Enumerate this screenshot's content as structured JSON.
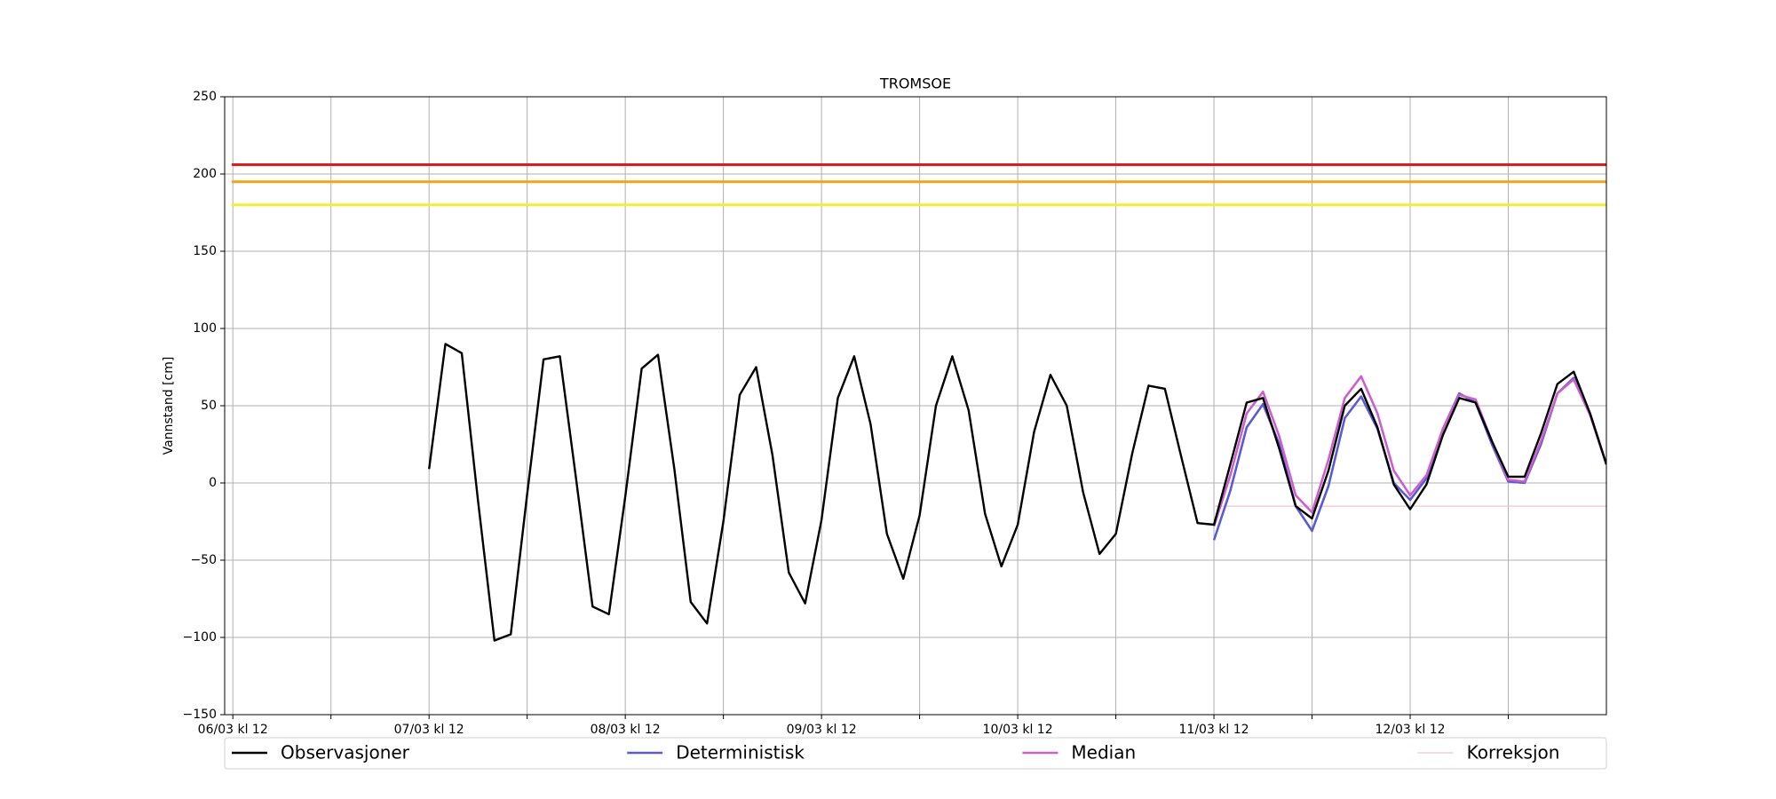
{
  "chart_data": {
    "type": "line",
    "title": "TROMSOE",
    "ylabel": "Vannstand [cm]",
    "xlim": [
      "06/03 kl 11",
      "13/03 kl 12"
    ],
    "ylim": [
      -150,
      250
    ],
    "yticks": [
      {
        "value": -150,
        "label": "−150"
      },
      {
        "value": -100,
        "label": "−100"
      },
      {
        "value": -50,
        "label": "−50"
      },
      0,
      50,
      100,
      150,
      200,
      250
    ],
    "xticks": [
      "06/03 kl 12",
      "07/03 kl 12",
      "08/03 kl 12",
      "09/03 kl 12",
      "10/03 kl 12",
      "11/03 kl 12",
      "12/03 kl 12"
    ],
    "xticks_minor": [
      "07/03 kl 00",
      "08/03 kl 00",
      "09/03 kl 00",
      "10/03 kl 00",
      "11/03 kl 00",
      "12/03 kl 00",
      "13/03 kl 00"
    ],
    "grid": true,
    "legend": "below",
    "hlines": [
      {
        "value": 206,
        "color": "#e8181a"
      },
      {
        "value": 195,
        "color": "#f5a30f"
      },
      {
        "value": 180,
        "color": "#f5ee2a"
      }
    ],
    "series": [
      {
        "name": "Observasjoner",
        "color": "#000000",
        "width": 2.4,
        "x": [
          "07/03 kl 12",
          "07/03 kl 14",
          "07/03 kl 16",
          "07/03 kl 18",
          "07/03 kl 20",
          "07/03 kl 22",
          "08/03 kl 00",
          "08/03 kl 02",
          "08/03 kl 04",
          "08/03 kl 06",
          "08/03 kl 08",
          "08/03 kl 10",
          "08/03 kl 12",
          "08/03 kl 14",
          "08/03 kl 16",
          "08/03 kl 18",
          "08/03 kl 20",
          "08/03 kl 22",
          "09/03 kl 00",
          "09/03 kl 02",
          "09/03 kl 04",
          "09/03 kl 06",
          "09/03 kl 08",
          "09/03 kl 10",
          "09/03 kl 12",
          "09/03 kl 14",
          "09/03 kl 16",
          "09/03 kl 18",
          "09/03 kl 20",
          "09/03 kl 22",
          "10/03 kl 00",
          "10/03 kl 02",
          "10/03 kl 04",
          "10/03 kl 06",
          "10/03 kl 08",
          "10/03 kl 10",
          "10/03 kl 12",
          "10/03 kl 14",
          "10/03 kl 16",
          "10/03 kl 18",
          "10/03 kl 20",
          "10/03 kl 22",
          "11/03 kl 00",
          "11/03 kl 02",
          "11/03 kl 04",
          "11/03 kl 06",
          "11/03 kl 08",
          "11/03 kl 10",
          "11/03 kl 12",
          "11/03 kl 14",
          "11/03 kl 16",
          "11/03 kl 18",
          "11/03 kl 20",
          "11/03 kl 22",
          "12/03 kl 00",
          "12/03 kl 02",
          "12/03 kl 04",
          "12/03 kl 06",
          "12/03 kl 08",
          "12/03 kl 10",
          "12/03 kl 12",
          "12/03 kl 14",
          "12/03 kl 16",
          "12/03 kl 18",
          "12/03 kl 20",
          "12/03 kl 22",
          "13/03 kl 00",
          "13/03 kl 02",
          "13/03 kl 04",
          "13/03 kl 06",
          "13/03 kl 08",
          "13/03 kl 10",
          "13/03 kl 12"
        ],
        "values": [
          9,
          90,
          84,
          -12,
          -102,
          -98,
          -7,
          80,
          82,
          2,
          -80,
          -85,
          -9,
          74,
          83,
          9,
          -77,
          -91,
          -25,
          57,
          75,
          18,
          -58,
          -78,
          -24,
          55,
          82,
          38,
          -33,
          -62,
          -21,
          50,
          82,
          47,
          -20,
          -54,
          -27,
          33,
          70,
          50,
          -6,
          -46,
          -33,
          19,
          63,
          61,
          17,
          -26,
          -27,
          12,
          52,
          55,
          22,
          -15,
          -23,
          8,
          50,
          61,
          36,
          -1,
          -17,
          -1,
          31,
          55,
          52,
          27,
          4,
          4,
          32,
          64,
          72,
          45,
          12
        ]
      },
      {
        "name": "Deterministisk",
        "color": "#5a5ad6",
        "width": 2.6,
        "x": [
          "11/03 kl 12",
          "11/03 kl 14",
          "11/03 kl 16",
          "11/03 kl 18",
          "11/03 kl 20",
          "11/03 kl 22",
          "12/03 kl 00",
          "12/03 kl 02",
          "12/03 kl 04",
          "12/03 kl 06",
          "12/03 kl 08",
          "12/03 kl 10",
          "12/03 kl 12",
          "12/03 kl 14",
          "12/03 kl 16",
          "12/03 kl 18",
          "12/03 kl 20",
          "12/03 kl 22",
          "13/03 kl 00",
          "13/03 kl 02",
          "13/03 kl 04",
          "13/03 kl 06",
          "13/03 kl 08",
          "13/03 kl 10",
          "13/03 kl 12"
        ],
        "values": [
          -37,
          -5,
          36,
          51,
          25,
          -15,
          -31,
          -2,
          42,
          56,
          35,
          0,
          -11,
          3,
          35,
          58,
          52,
          25,
          1,
          0,
          25,
          58,
          68,
          45,
          12
        ]
      },
      {
        "name": "Median",
        "color": "#cc5fcc",
        "width": 2.6,
        "x": [
          "11/03 kl 12",
          "11/03 kl 14",
          "11/03 kl 16",
          "11/03 kl 18",
          "11/03 kl 20",
          "11/03 kl 22",
          "12/03 kl 00",
          "12/03 kl 02",
          "12/03 kl 04",
          "12/03 kl 06",
          "12/03 kl 08",
          "12/03 kl 10",
          "12/03 kl 12",
          "12/03 kl 14",
          "12/03 kl 16",
          "12/03 kl 18",
          "12/03 kl 20",
          "12/03 kl 22",
          "13/03 kl 00",
          "13/03 kl 02",
          "13/03 kl 04",
          "13/03 kl 06",
          "13/03 kl 08",
          "13/03 kl 10",
          "13/03 kl 12"
        ],
        "values": [
          -28,
          5,
          45,
          59,
          30,
          -8,
          -19,
          15,
          55,
          69,
          45,
          8,
          -8,
          5,
          35,
          57,
          54,
          27,
          2,
          1,
          27,
          58,
          67,
          44,
          12
        ]
      },
      {
        "name": "Korreksjon",
        "color": "#f2c4cc",
        "width": 1.2,
        "x": [
          "11/03 kl 12",
          "13/03 kl 12"
        ],
        "values": [
          -15,
          -15
        ]
      }
    ]
  }
}
